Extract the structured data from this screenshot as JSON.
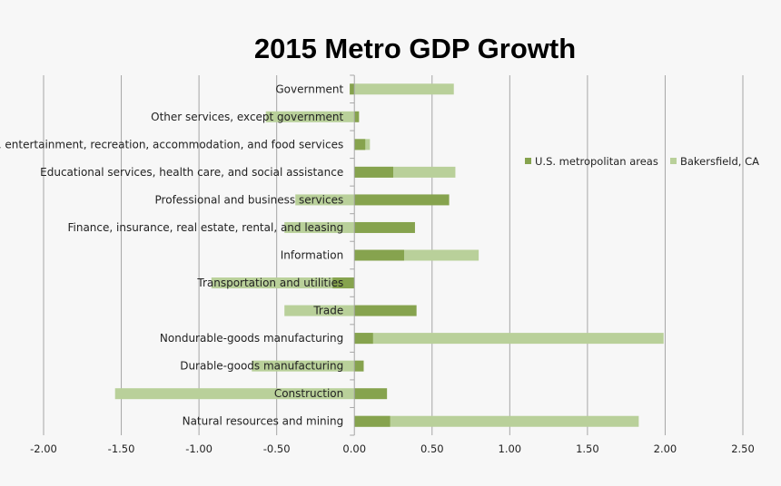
{
  "chart_data": {
    "type": "bar",
    "orientation": "horizontal",
    "title": "2015 Metro GDP Growth",
    "xlabel": "",
    "ylabel": "",
    "xlim": [
      -2.0,
      2.5
    ],
    "xticks": [
      "-2.00",
      "-1.50",
      "-1.00",
      "-0.50",
      "0.00",
      "0.50",
      "1.00",
      "1.50",
      "2.00",
      "2.50"
    ],
    "xtick_values": [
      -2.0,
      -1.5,
      -1.0,
      -0.5,
      0.0,
      0.5,
      1.0,
      1.5,
      2.0,
      2.5
    ],
    "grid": "vertical",
    "legend_position": "right",
    "categories": [
      "Government",
      "Other services, except government",
      "Arts, entertainment, recreation, accommodation, and food services",
      "Educational services, health care, and social assistance",
      "Professional and business services",
      "Finance, insurance, real estate, rental, and leasing",
      "Information",
      "Transportation and utilities",
      "Trade",
      "Nondurable-goods manufacturing",
      "Durable-goods manufacturing",
      "Construction",
      "Natural resources and mining"
    ],
    "series": [
      {
        "name": "Bakersfield, CA",
        "color": "#b9d09a",
        "values": [
          0.64,
          -0.57,
          0.1,
          0.65,
          -0.38,
          -0.45,
          0.8,
          -0.92,
          -0.45,
          1.99,
          -0.66,
          -1.54,
          1.83
        ]
      },
      {
        "name": "U.S. metropolitan areas",
        "color": "#86a34e",
        "values": [
          -0.03,
          0.03,
          0.07,
          0.25,
          0.61,
          0.39,
          0.32,
          -0.14,
          0.4,
          0.12,
          0.06,
          0.21,
          0.23
        ]
      }
    ],
    "legend_order": [
      "U.S. metropolitan areas",
      "Bakersfield, CA"
    ]
  }
}
